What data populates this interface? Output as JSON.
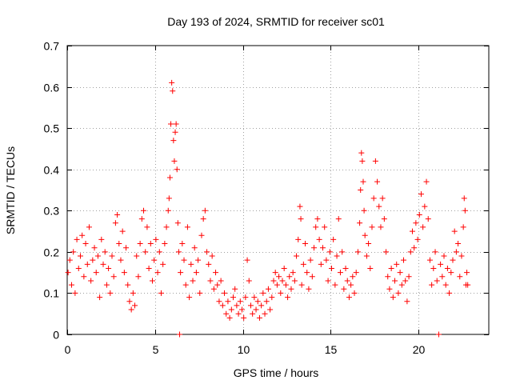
{
  "chart_data": {
    "type": "scatter",
    "title": "Day 193 of 2024, SRMTID for receiver sc01",
    "xlabel": "GPS time / hours",
    "ylabel": "SRMTID / TECUs",
    "xlim": [
      0,
      24
    ],
    "ylim": [
      0,
      0.7
    ],
    "xticks": [
      0,
      5,
      10,
      15,
      20
    ],
    "xtick_labels": [
      "0",
      "5",
      "10",
      "15",
      "20"
    ],
    "yticks": [
      0,
      0.1,
      0.2,
      0.3,
      0.4,
      0.5,
      0.6,
      0.7
    ],
    "ytick_labels": [
      "0",
      "0.1",
      "0.2",
      "0.3",
      "0.4",
      "0.5",
      "0.6",
      "0.7"
    ],
    "grid": true,
    "marker": "+",
    "color": "#ff0000",
    "series": [
      {
        "name": "SRMTID",
        "points": [
          [
            0.05,
            0.15
          ],
          [
            0.15,
            0.18
          ],
          [
            0.25,
            0.12
          ],
          [
            0.35,
            0.2
          ],
          [
            0.45,
            0.1
          ],
          [
            0.55,
            0.23
          ],
          [
            0.65,
            0.16
          ],
          [
            0.75,
            0.19
          ],
          [
            0.85,
            0.24
          ],
          [
            0.95,
            0.14
          ],
          [
            1.05,
            0.22
          ],
          [
            1.15,
            0.17
          ],
          [
            1.25,
            0.26
          ],
          [
            1.35,
            0.13
          ],
          [
            1.45,
            0.18
          ],
          [
            1.55,
            0.21
          ],
          [
            1.65,
            0.15
          ],
          [
            1.75,
            0.19
          ],
          [
            1.85,
            0.09
          ],
          [
            1.95,
            0.23
          ],
          [
            2.05,
            0.17
          ],
          [
            2.15,
            0.2
          ],
          [
            2.25,
            0.12
          ],
          [
            2.35,
            0.16
          ],
          [
            2.45,
            0.1
          ],
          [
            2.55,
            0.19
          ],
          [
            2.65,
            0.14
          ],
          [
            2.75,
            0.27
          ],
          [
            2.85,
            0.29
          ],
          [
            2.95,
            0.22
          ],
          [
            3.05,
            0.18
          ],
          [
            3.15,
            0.25
          ],
          [
            3.25,
            0.15
          ],
          [
            3.35,
            0.21
          ],
          [
            3.45,
            0.12
          ],
          [
            3.55,
            0.08
          ],
          [
            3.65,
            0.06
          ],
          [
            3.75,
            0.1
          ],
          [
            3.85,
            0.07
          ],
          [
            3.95,
            0.19
          ],
          [
            4.05,
            0.14
          ],
          [
            4.15,
            0.22
          ],
          [
            4.25,
            0.28
          ],
          [
            4.35,
            0.3
          ],
          [
            4.45,
            0.2
          ],
          [
            4.55,
            0.26
          ],
          [
            4.65,
            0.16
          ],
          [
            4.75,
            0.22
          ],
          [
            4.85,
            0.13
          ],
          [
            4.95,
            0.18
          ],
          [
            5.05,
            0.23
          ],
          [
            5.15,
            0.15
          ],
          [
            5.25,
            0.2
          ],
          [
            5.35,
            0.1
          ],
          [
            5.45,
            0.17
          ],
          [
            5.55,
            0.22
          ],
          [
            5.65,
            0.26
          ],
          [
            5.75,
            0.3
          ],
          [
            5.8,
            0.33
          ],
          [
            5.85,
            0.38
          ],
          [
            5.9,
            0.51
          ],
          [
            5.95,
            0.61
          ],
          [
            6.0,
            0.59
          ],
          [
            6.05,
            0.47
          ],
          [
            6.1,
            0.42
          ],
          [
            6.15,
            0.49
          ],
          [
            6.2,
            0.51
          ],
          [
            6.25,
            0.4
          ],
          [
            6.3,
            0.27
          ],
          [
            6.35,
            0.2
          ],
          [
            6.4,
            0.0
          ],
          [
            6.45,
            0.15
          ],
          [
            6.55,
            0.22
          ],
          [
            6.65,
            0.18
          ],
          [
            6.75,
            0.12
          ],
          [
            6.85,
            0.26
          ],
          [
            6.95,
            0.09
          ],
          [
            7.05,
            0.17
          ],
          [
            7.15,
            0.13
          ],
          [
            7.25,
            0.21
          ],
          [
            7.35,
            0.15
          ],
          [
            7.45,
            0.18
          ],
          [
            7.55,
            0.1
          ],
          [
            7.65,
            0.24
          ],
          [
            7.75,
            0.28
          ],
          [
            7.85,
            0.3
          ],
          [
            7.95,
            0.2
          ],
          [
            8.05,
            0.17
          ],
          [
            8.15,
            0.13
          ],
          [
            8.25,
            0.19
          ],
          [
            8.35,
            0.11
          ],
          [
            8.45,
            0.15
          ],
          [
            8.55,
            0.12
          ],
          [
            8.65,
            0.08
          ],
          [
            8.75,
            0.13
          ],
          [
            8.85,
            0.07
          ],
          [
            8.95,
            0.1
          ],
          [
            9.05,
            0.05
          ],
          [
            9.15,
            0.08
          ],
          [
            9.25,
            0.04
          ],
          [
            9.35,
            0.06
          ],
          [
            9.45,
            0.09
          ],
          [
            9.55,
            0.11
          ],
          [
            9.65,
            0.07
          ],
          [
            9.75,
            0.05
          ],
          [
            9.85,
            0.08
          ],
          [
            9.95,
            0.06
          ],
          [
            10.05,
            0.04
          ],
          [
            10.15,
            0.09
          ],
          [
            10.25,
            0.18
          ],
          [
            10.35,
            0.13
          ],
          [
            10.45,
            0.07
          ],
          [
            10.55,
            0.05
          ],
          [
            10.65,
            0.09
          ],
          [
            10.75,
            0.06
          ],
          [
            10.85,
            0.08
          ],
          [
            10.95,
            0.04
          ],
          [
            11.05,
            0.07
          ],
          [
            11.15,
            0.1
          ],
          [
            11.25,
            0.05
          ],
          [
            11.35,
            0.08
          ],
          [
            11.45,
            0.11
          ],
          [
            11.55,
            0.06
          ],
          [
            11.65,
            0.09
          ],
          [
            11.75,
            0.13
          ],
          [
            11.85,
            0.15
          ],
          [
            11.95,
            0.12
          ],
          [
            12.05,
            0.14
          ],
          [
            12.15,
            0.1
          ],
          [
            12.25,
            0.13
          ],
          [
            12.35,
            0.16
          ],
          [
            12.45,
            0.12
          ],
          [
            12.55,
            0.09
          ],
          [
            12.65,
            0.14
          ],
          [
            12.75,
            0.11
          ],
          [
            12.85,
            0.15
          ],
          [
            12.95,
            0.13
          ],
          [
            13.05,
            0.19
          ],
          [
            13.15,
            0.23
          ],
          [
            13.25,
            0.31
          ],
          [
            13.3,
            0.28
          ],
          [
            13.35,
            0.12
          ],
          [
            13.45,
            0.17
          ],
          [
            13.55,
            0.22
          ],
          [
            13.65,
            0.15
          ],
          [
            13.75,
            0.11
          ],
          [
            13.85,
            0.18
          ],
          [
            13.95,
            0.14
          ],
          [
            14.05,
            0.21
          ],
          [
            14.15,
            0.26
          ],
          [
            14.25,
            0.28
          ],
          [
            14.35,
            0.23
          ],
          [
            14.45,
            0.17
          ],
          [
            14.55,
            0.21
          ],
          [
            14.65,
            0.26
          ],
          [
            14.75,
            0.18
          ],
          [
            14.85,
            0.13
          ],
          [
            14.95,
            0.2
          ],
          [
            15.05,
            0.16
          ],
          [
            15.15,
            0.23
          ],
          [
            15.25,
            0.12
          ],
          [
            15.35,
            0.19
          ],
          [
            15.45,
            0.28
          ],
          [
            15.55,
            0.15
          ],
          [
            15.65,
            0.2
          ],
          [
            15.75,
            0.11
          ],
          [
            15.85,
            0.16
          ],
          [
            15.95,
            0.13
          ],
          [
            16.05,
            0.09
          ],
          [
            16.15,
            0.12
          ],
          [
            16.25,
            0.14
          ],
          [
            16.35,
            0.1
          ],
          [
            16.45,
            0.15
          ],
          [
            16.55,
            0.2
          ],
          [
            16.65,
            0.27
          ],
          [
            16.7,
            0.35
          ],
          [
            16.75,
            0.44
          ],
          [
            16.8,
            0.42
          ],
          [
            16.85,
            0.37
          ],
          [
            16.9,
            0.3
          ],
          [
            16.95,
            0.24
          ],
          [
            17.05,
            0.19
          ],
          [
            17.15,
            0.22
          ],
          [
            17.25,
            0.16
          ],
          [
            17.35,
            0.26
          ],
          [
            17.45,
            0.33
          ],
          [
            17.55,
            0.42
          ],
          [
            17.65,
            0.37
          ],
          [
            17.75,
            0.31
          ],
          [
            17.85,
            0.26
          ],
          [
            17.95,
            0.33
          ],
          [
            18.05,
            0.28
          ],
          [
            18.15,
            0.2
          ],
          [
            18.25,
            0.14
          ],
          [
            18.35,
            0.11
          ],
          [
            18.45,
            0.16
          ],
          [
            18.55,
            0.09
          ],
          [
            18.65,
            0.13
          ],
          [
            18.75,
            0.17
          ],
          [
            18.85,
            0.1
          ],
          [
            18.95,
            0.15
          ],
          [
            19.05,
            0.12
          ],
          [
            19.15,
            0.18
          ],
          [
            19.25,
            0.13
          ],
          [
            19.35,
            0.08
          ],
          [
            19.45,
            0.14
          ],
          [
            19.55,
            0.2
          ],
          [
            19.65,
            0.25
          ],
          [
            19.75,
            0.21
          ],
          [
            19.85,
            0.27
          ],
          [
            19.95,
            0.23
          ],
          [
            20.05,
            0.29
          ],
          [
            20.15,
            0.34
          ],
          [
            20.25,
            0.26
          ],
          [
            20.35,
            0.31
          ],
          [
            20.45,
            0.37
          ],
          [
            20.55,
            0.28
          ],
          [
            20.65,
            0.18
          ],
          [
            20.75,
            0.12
          ],
          [
            20.85,
            0.16
          ],
          [
            20.95,
            0.2
          ],
          [
            21.05,
            0.13
          ],
          [
            21.15,
            0.0
          ],
          [
            21.25,
            0.17
          ],
          [
            21.35,
            0.14
          ],
          [
            21.45,
            0.19
          ],
          [
            21.55,
            0.12
          ],
          [
            21.65,
            0.16
          ],
          [
            21.75,
            0.1
          ],
          [
            21.85,
            0.15
          ],
          [
            21.95,
            0.18
          ],
          [
            22.05,
            0.25
          ],
          [
            22.15,
            0.2
          ],
          [
            22.25,
            0.22
          ],
          [
            22.35,
            0.14
          ],
          [
            22.45,
            0.19
          ],
          [
            22.55,
            0.26
          ],
          [
            22.6,
            0.33
          ],
          [
            22.65,
            0.3
          ],
          [
            22.7,
            0.12
          ],
          [
            22.75,
            0.15
          ],
          [
            22.8,
            0.12
          ]
        ]
      }
    ]
  }
}
